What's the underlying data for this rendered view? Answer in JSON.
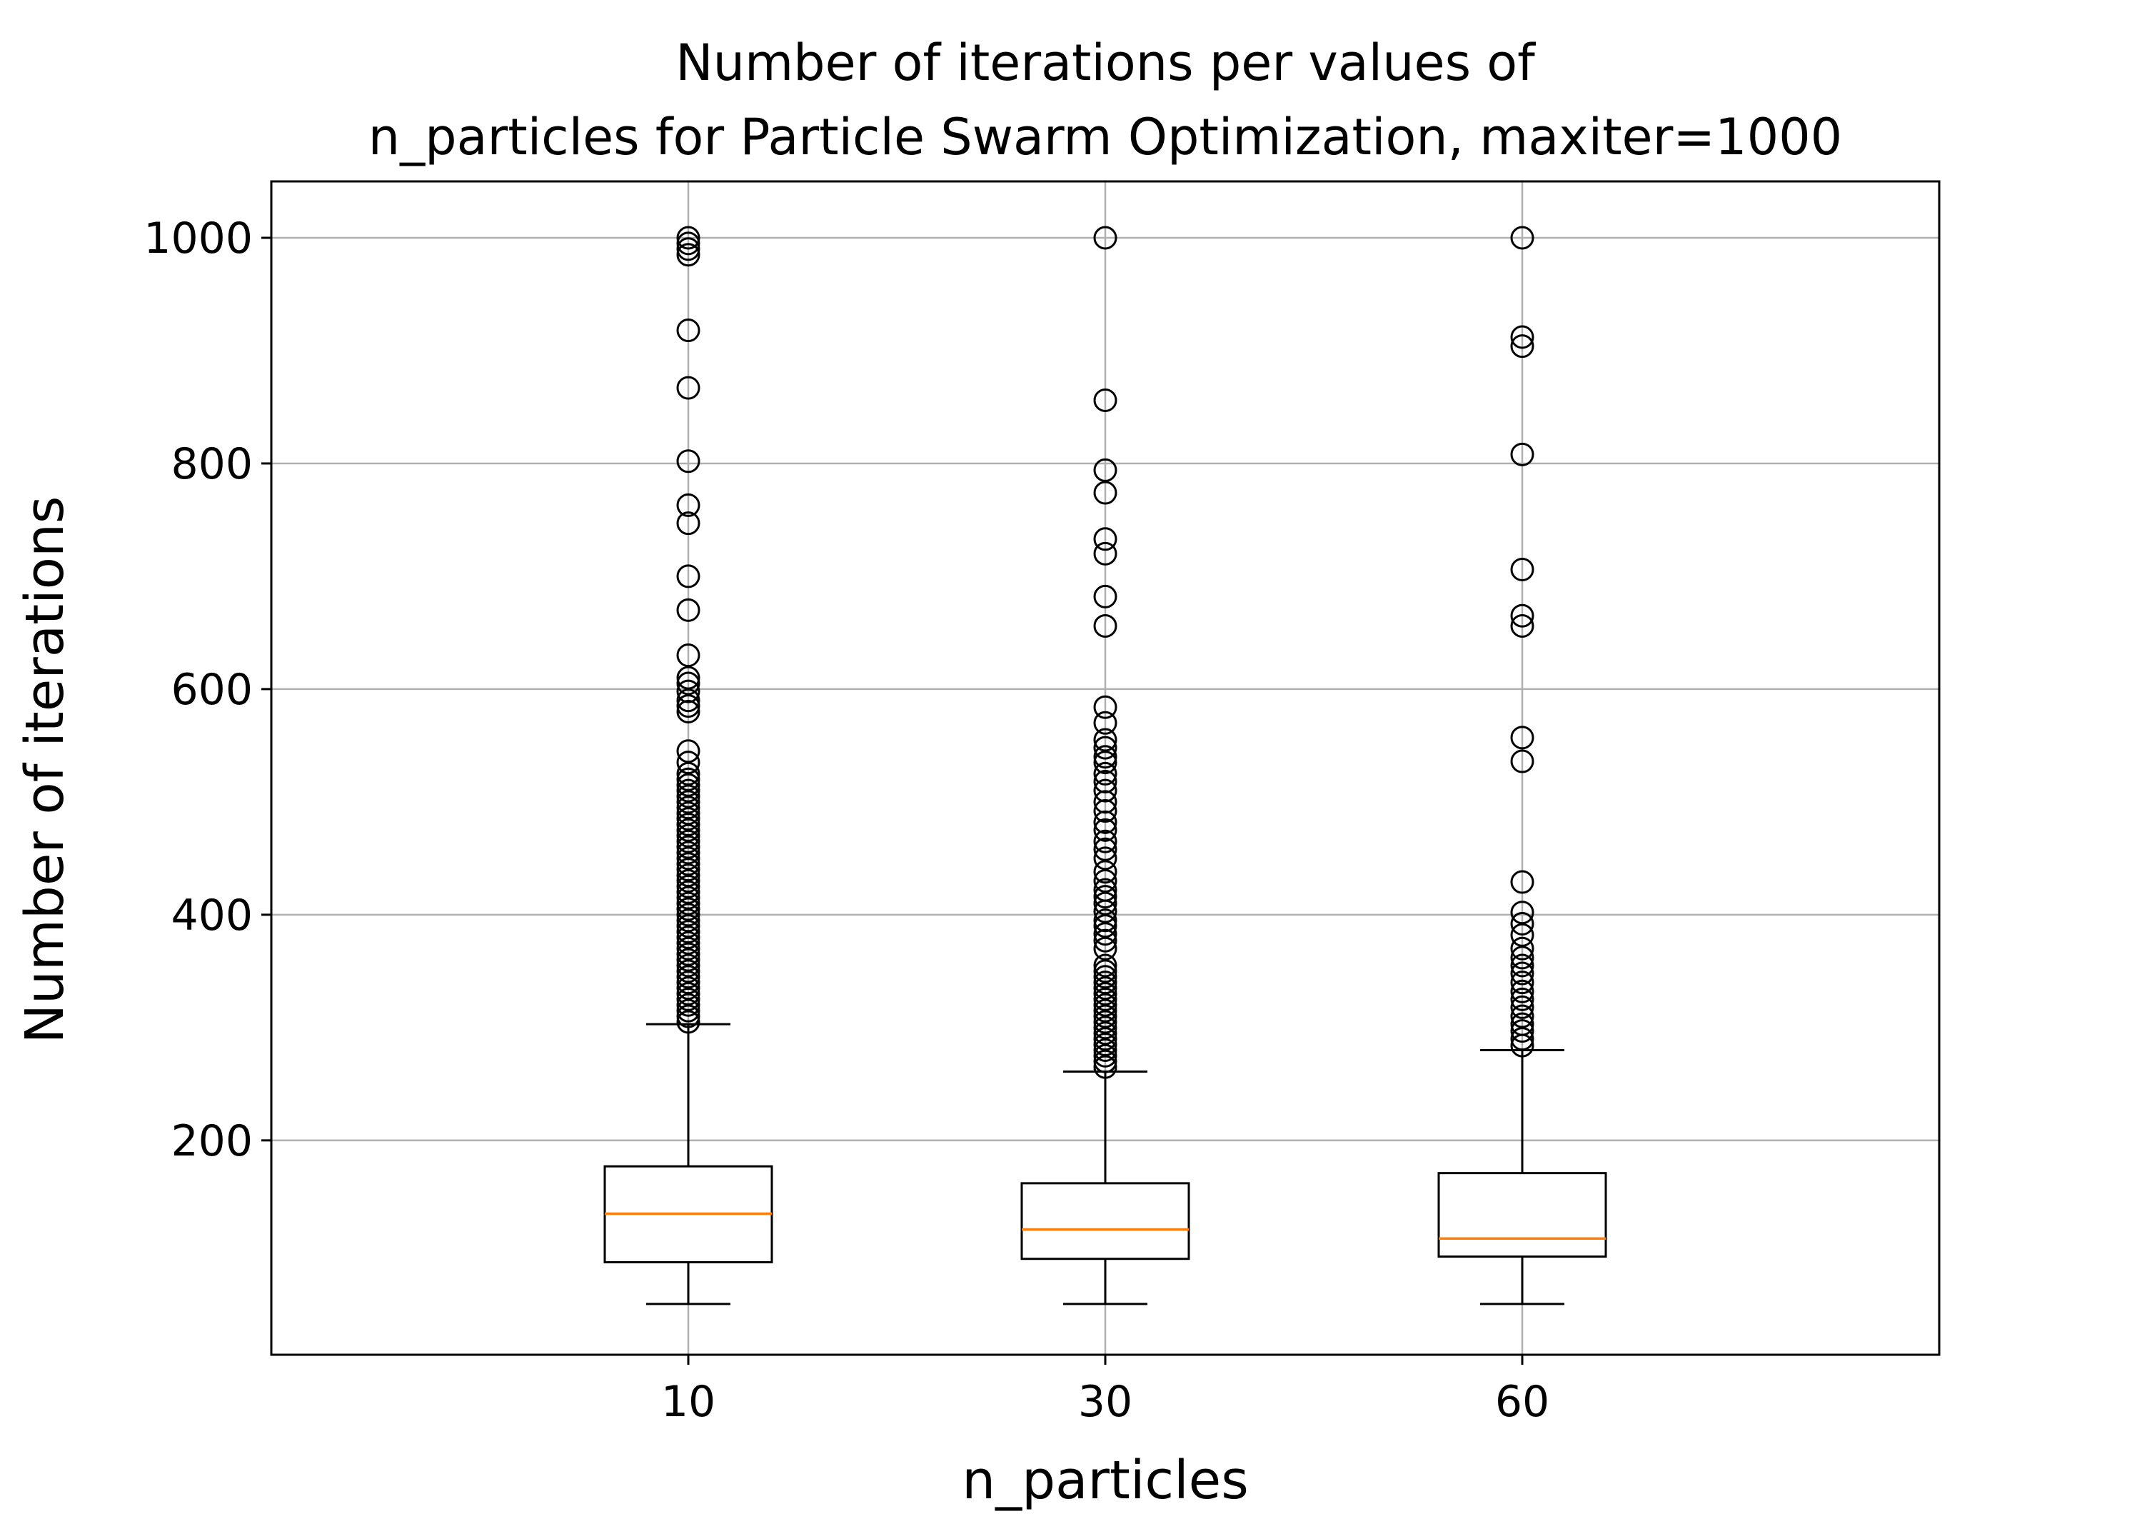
{
  "chart_data": {
    "type": "boxplot",
    "title_line1": "Number of iterations per values of",
    "title_line2": "n_particles for Particle Swarm Optimization, maxiter=1000",
    "xlabel": "n_particles",
    "ylabel": "Number of iterations",
    "categories": [
      "10",
      "30",
      "60"
    ],
    "y_ticks": [
      200,
      400,
      600,
      800,
      1000
    ],
    "ylim": [
      10,
      1050
    ],
    "grid": true,
    "colors": {
      "box": "#000000",
      "median": "#ff7f0e",
      "grid": "#b0b0b0",
      "flier": "#000000"
    },
    "boxes": [
      {
        "category": "10",
        "whisker_low": 55,
        "q1": 92,
        "median": 135,
        "q3": 177,
        "whisker_high": 303,
        "fliers": [
          1000,
          995,
          990,
          985,
          918,
          867,
          802,
          763,
          747,
          700,
          670,
          630,
          610,
          605,
          598,
          590,
          585,
          580,
          545,
          535,
          525,
          520,
          515,
          510,
          505,
          500,
          495,
          490,
          485,
          480,
          475,
          470,
          465,
          460,
          455,
          450,
          445,
          440,
          435,
          430,
          425,
          420,
          415,
          410,
          405,
          400,
          395,
          390,
          385,
          380,
          375,
          370,
          365,
          360,
          355,
          350,
          345,
          340,
          335,
          330,
          325,
          320,
          315,
          310,
          305
        ]
      },
      {
        "category": "30",
        "whisker_low": 55,
        "q1": 95,
        "median": 121,
        "q3": 162,
        "whisker_high": 261,
        "fliers": [
          1000,
          856,
          794,
          774,
          733,
          720,
          682,
          656,
          584,
          570,
          555,
          548,
          540,
          535,
          525,
          518,
          510,
          500,
          492,
          482,
          475,
          465,
          458,
          450,
          438,
          430,
          422,
          416,
          410,
          403,
          395,
          390,
          383,
          377,
          370,
          355,
          350,
          345,
          340,
          335,
          330,
          325,
          320,
          315,
          310,
          305,
          300,
          295,
          290,
          285,
          280,
          275,
          270,
          265
        ]
      },
      {
        "category": "60",
        "whisker_low": 55,
        "q1": 97,
        "median": 113,
        "q3": 171,
        "whisker_high": 280,
        "fliers": [
          1000,
          912,
          904,
          808,
          706,
          665,
          656,
          557,
          536,
          429,
          402,
          392,
          382,
          370,
          362,
          355,
          348,
          340,
          332,
          325,
          318,
          310,
          303,
          297,
          290,
          284
        ]
      }
    ]
  }
}
